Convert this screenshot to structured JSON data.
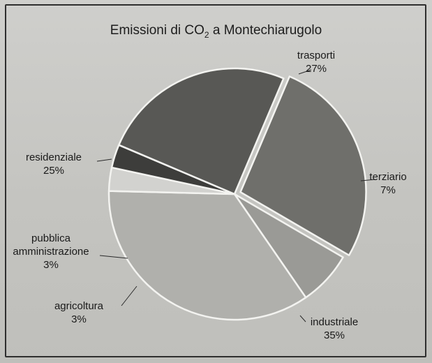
{
  "chart_data": {
    "type": "pie",
    "title": "Emissioni di CO",
    "title_subscript": "2",
    "title_suffix": " a Montechiarugolo",
    "slices": [
      {
        "label": "trasporti",
        "value": 27,
        "pct": "27%",
        "color": "#6f6f6b"
      },
      {
        "label": "terziario",
        "value": 7,
        "pct": "7%",
        "color": "#9a9a96"
      },
      {
        "label": "industriale",
        "value": 35,
        "pct": "35%",
        "color": "#b0b0ac"
      },
      {
        "label": "agricoltura",
        "value": 3,
        "pct": "3%",
        "color": "#d2d2cf"
      },
      {
        "label": "pubblica amministrazione",
        "label_lines": [
          "pubblica",
          "amministrazione"
        ],
        "value": 3,
        "pct": "3%",
        "color": "#3d3d3b"
      },
      {
        "label": "residenziale",
        "value": 25,
        "pct": "25%",
        "color": "#585855"
      }
    ]
  }
}
